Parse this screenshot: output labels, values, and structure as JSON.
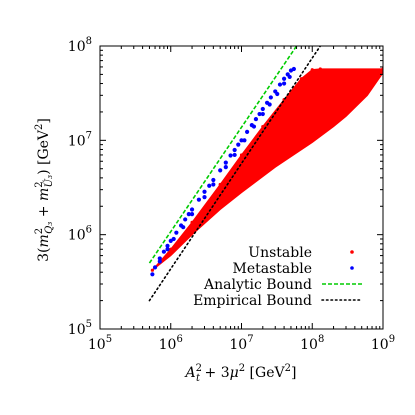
{
  "chart_data": {
    "type": "scatter",
    "title": "",
    "xlabel": "A_t^2 + 3μ^2 [GeV^2]",
    "ylabel": "3(m_Q3^2 + m_U3^2) [GeV^2]",
    "x_scale": "log",
    "y_scale": "log",
    "xlim": [
      100000,
      1000000000
    ],
    "ylim": [
      100000,
      100000000
    ],
    "x_ticks": [
      {
        "value": 100000,
        "base": "10",
        "exp": "5"
      },
      {
        "value": 1000000,
        "base": "10",
        "exp": "6"
      },
      {
        "value": 10000000,
        "base": "10",
        "exp": "7"
      },
      {
        "value": 100000000,
        "base": "10",
        "exp": "8"
      },
      {
        "value": 1000000000,
        "base": "10",
        "exp": "9"
      }
    ],
    "y_ticks": [
      {
        "value": 100000,
        "base": "10",
        "exp": "5"
      },
      {
        "value": 1000000,
        "base": "10",
        "exp": "6"
      },
      {
        "value": 10000000,
        "base": "10",
        "exp": "7"
      },
      {
        "value": 100000000,
        "base": "10",
        "exp": "8"
      }
    ],
    "grid": false,
    "legend_position": "bottom-right",
    "series": [
      {
        "name": "Unstable",
        "kind": "points",
        "color": "#ff0000",
        "region": {
          "upper_edge": [
            [
              550000,
              420000
            ],
            [
              1000000,
              700000
            ],
            [
              2000000,
              1350000
            ],
            [
              5000000,
              3400000
            ],
            [
              10000000,
              7000000
            ],
            [
              20000000,
              14000000
            ],
            [
              40000000,
              27000000
            ],
            [
              70000000,
              45000000
            ],
            [
              100000000,
              56000000
            ],
            [
              130000000,
              57000000
            ],
            [
              1000000000,
              57000000
            ]
          ],
          "lower_edge": [
            [
              550000,
              420000
            ],
            [
              1000000,
              600000
            ],
            [
              2000000,
              1000000
            ],
            [
              5000000,
              1850000
            ],
            [
              10000000,
              2800000
            ],
            [
              30000000,
              5200000
            ],
            [
              100000000,
              9500000
            ],
            [
              200000000,
              14000000
            ],
            [
              300000000,
              18000000
            ],
            [
              600000000,
              30000000
            ],
            [
              1000000000,
              52000000
            ]
          ]
        }
      },
      {
        "name": "Metastable",
        "kind": "points",
        "color": "#0000ff",
        "points": [
          [
            550000,
            380000
          ],
          [
            600000,
            450000
          ],
          [
            700000,
            560000
          ],
          [
            800000,
            660000
          ],
          [
            900000,
            760000
          ],
          [
            1000000,
            860000
          ],
          [
            1200000,
            1050000
          ],
          [
            1400000,
            1250000
          ],
          [
            1600000,
            1450000
          ],
          [
            1800000,
            1650000
          ],
          [
            2000000,
            1850000
          ],
          [
            2500000,
            2350000
          ],
          [
            3000000,
            2850000
          ],
          [
            3500000,
            3300000
          ],
          [
            4000000,
            3800000
          ],
          [
            5000000,
            4800000
          ],
          [
            6000000,
            5800000
          ],
          [
            7000000,
            6900000
          ],
          [
            8000000,
            7900000
          ],
          [
            9000000,
            9000000
          ],
          [
            10000000,
            10000000
          ],
          [
            12000000,
            12300000
          ],
          [
            14000000,
            14500000
          ],
          [
            16000000,
            16800000
          ],
          [
            18000000,
            19000000
          ],
          [
            20000000,
            21500000
          ],
          [
            23000000,
            25000000
          ],
          [
            26000000,
            28500000
          ],
          [
            30000000,
            33000000
          ],
          [
            35000000,
            39000000
          ],
          [
            40000000,
            45000000
          ],
          [
            45000000,
            50000000
          ],
          [
            50000000,
            55000000
          ],
          [
            55000000,
            57000000
          ],
          [
            700000,
            520000
          ],
          [
            900000,
            700000
          ],
          [
            1100000,
            900000
          ],
          [
            1500000,
            1200000
          ],
          [
            2000000,
            1650000
          ],
          [
            3000000,
            2500000
          ],
          [
            4000000,
            3400000
          ],
          [
            6000000,
            5200000
          ],
          [
            8000000,
            7000000
          ],
          [
            11000000,
            10000000
          ],
          [
            15000000,
            14000000
          ],
          [
            20000000,
            19000000
          ],
          [
            25000000,
            24000000
          ],
          [
            32000000,
            31000000
          ],
          [
            40000000,
            40000000
          ],
          [
            48000000,
            47000000
          ]
        ]
      },
      {
        "name": "Analytic Bound",
        "kind": "line",
        "style": "dashed",
        "color": "#00cc00",
        "points": [
          [
            500000,
            500000
          ],
          [
            60000000,
            100000000
          ]
        ]
      },
      {
        "name": "Empirical Bound",
        "kind": "line",
        "style": "dotted",
        "color": "#000000",
        "points": [
          [
            500000,
            200000
          ],
          [
            130000000,
            100000000
          ]
        ]
      }
    ]
  }
}
